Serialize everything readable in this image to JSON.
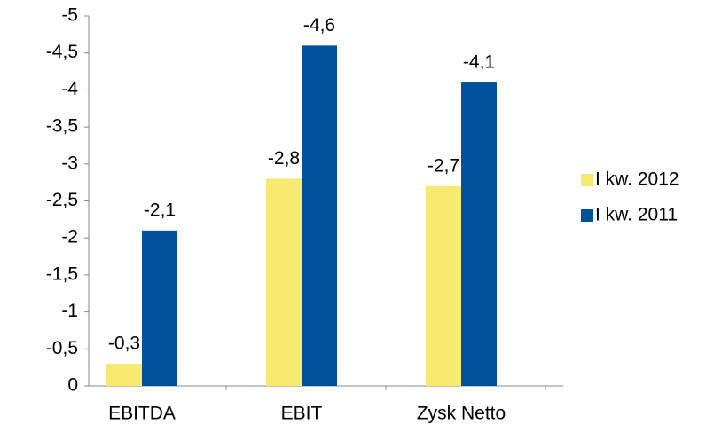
{
  "chart_data": {
    "type": "bar",
    "categories": [
      "EBITDA",
      "EBIT",
      "Zysk Netto"
    ],
    "series": [
      {
        "name": "I kw. 2012",
        "color": "#f7ea6e",
        "values": [
          -0.3,
          -2.8,
          -2.7
        ],
        "value_labels": [
          "-0,3",
          "-2,8",
          "-2,7"
        ]
      },
      {
        "name": "I kw. 2011",
        "color": "#00529c",
        "values": [
          -2.1,
          -4.6,
          -4.1
        ],
        "value_labels": [
          "-2,1",
          "-4,6",
          "-4,1"
        ]
      }
    ],
    "ylim": [
      0,
      -5
    ],
    "yticks": [
      0,
      {
        "value": -0.5,
        "label": "-0,5"
      },
      -1,
      {
        "value": -1.5,
        "label": "-1,5"
      },
      -2,
      {
        "value": -2.5,
        "label": "-2,5"
      },
      -3,
      {
        "value": -3.5,
        "label": "-3,5"
      },
      -4,
      {
        "value": -4.5,
        "label": "-4,5"
      },
      -5
    ],
    "legend": "right",
    "grid": false
  }
}
